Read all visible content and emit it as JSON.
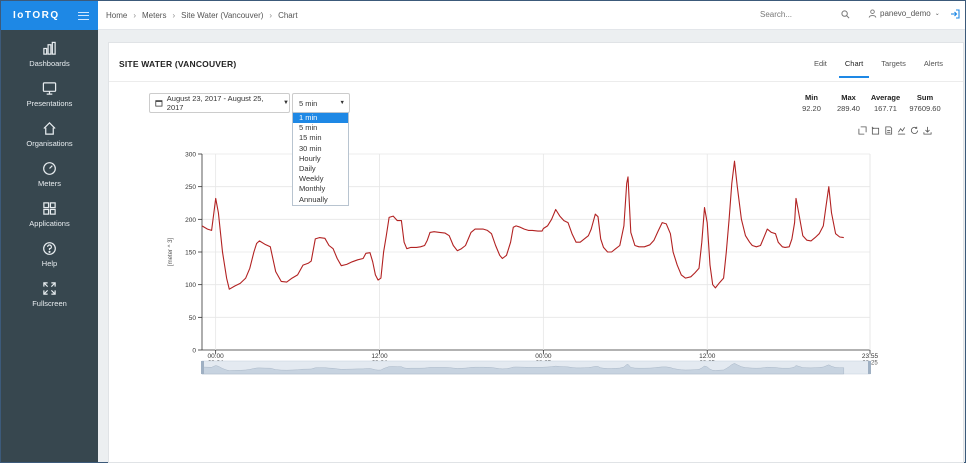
{
  "app": {
    "logo": "IoTORQ"
  },
  "sidebar": {
    "items": [
      {
        "label": "Dashboards",
        "icon": "bar-chart-icon"
      },
      {
        "label": "Presentations",
        "icon": "monitor-icon"
      },
      {
        "label": "Organisations",
        "icon": "home-icon"
      },
      {
        "label": "Meters",
        "icon": "gauge-icon"
      },
      {
        "label": "Applications",
        "icon": "grid-icon"
      },
      {
        "label": "Help",
        "icon": "help-icon"
      },
      {
        "label": "Fullscreen",
        "icon": "fullscreen-icon"
      }
    ]
  },
  "topbar": {
    "breadcrumb": [
      "Home",
      "Meters",
      "Site Water (Vancouver)",
      "Chart"
    ],
    "search_placeholder": "Search...",
    "user": "panevo_demo"
  },
  "card": {
    "title": "SITE WATER (VANCOUVER)",
    "tabs": [
      "Edit",
      "Chart",
      "Targets",
      "Alerts"
    ],
    "active_tab": "Chart"
  },
  "controls": {
    "date_range": "August 23, 2017 - August 25, 2017",
    "interval_selected": "5 min",
    "interval_options": [
      "1 min",
      "5 min",
      "15 min",
      "30 min",
      "Hourly",
      "Daily",
      "Weekly",
      "Monthly",
      "Annually"
    ],
    "highlighted_option": "1 min"
  },
  "stats": [
    {
      "label": "Min",
      "value": "92.20"
    },
    {
      "label": "Max",
      "value": "289.40"
    },
    {
      "label": "Average",
      "value": "167.71"
    },
    {
      "label": "Sum",
      "value": "97609.60"
    }
  ],
  "chart_data": {
    "type": "line",
    "ylabel": "[meter ^ 3]",
    "ylim": [
      0,
      300
    ],
    "yticks": [
      "0",
      "50",
      "100",
      "150",
      "200",
      "250",
      "300"
    ],
    "xticks": [
      {
        "time": "00:00",
        "date": "08-24"
      },
      {
        "time": "12:00",
        "date": "08-24"
      },
      {
        "time": "00:00",
        "date": "08-25"
      },
      {
        "time": "12:00",
        "date": "08-25"
      },
      {
        "time": "23:55",
        "date": "08-25"
      }
    ],
    "line_color": "#b22222",
    "x_hours_start": -1,
    "x_hours_end": 47.92,
    "series": [
      {
        "points": [
          [
            -1,
            190
          ],
          [
            -0.6,
            185
          ],
          [
            -0.3,
            183
          ],
          [
            0,
            232
          ],
          [
            0.2,
            210
          ],
          [
            0.5,
            150
          ],
          [
            0.8,
            110
          ],
          [
            1.0,
            93
          ],
          [
            1.4,
            98
          ],
          [
            1.8,
            102
          ],
          [
            2.2,
            110
          ],
          [
            2.5,
            125
          ],
          [
            2.8,
            150
          ],
          [
            3.0,
            163
          ],
          [
            3.2,
            167
          ],
          [
            3.6,
            162
          ],
          [
            4.0,
            158
          ],
          [
            4.4,
            120
          ],
          [
            4.8,
            105
          ],
          [
            5.2,
            104
          ],
          [
            5.6,
            110
          ],
          [
            6.0,
            115
          ],
          [
            6.4,
            130
          ],
          [
            6.8,
            133
          ],
          [
            7.0,
            136
          ],
          [
            7.3,
            170
          ],
          [
            7.6,
            172
          ],
          [
            8.0,
            171
          ],
          [
            8.3,
            160
          ],
          [
            8.6,
            155
          ],
          [
            8.9,
            140
          ],
          [
            9.2,
            129
          ],
          [
            9.6,
            131
          ],
          [
            10.0,
            135
          ],
          [
            10.4,
            138
          ],
          [
            10.8,
            140
          ],
          [
            11.0,
            148
          ],
          [
            11.3,
            149
          ],
          [
            11.5,
            135
          ],
          [
            11.7,
            115
          ],
          [
            11.9,
            107
          ],
          [
            12.1,
            110
          ],
          [
            12.3,
            150
          ],
          [
            12.5,
            175
          ],
          [
            12.7,
            203
          ],
          [
            13.0,
            205
          ],
          [
            13.3,
            198
          ],
          [
            13.6,
            198
          ],
          [
            13.8,
            165
          ],
          [
            14.0,
            155
          ],
          [
            14.3,
            157
          ],
          [
            14.7,
            157
          ],
          [
            15.0,
            158
          ],
          [
            15.3,
            160
          ],
          [
            15.5,
            168
          ],
          [
            15.7,
            180
          ],
          [
            16.0,
            181
          ],
          [
            16.4,
            180
          ],
          [
            16.8,
            179
          ],
          [
            17.1,
            175
          ],
          [
            17.4,
            160
          ],
          [
            17.7,
            152
          ],
          [
            18.0,
            155
          ],
          [
            18.3,
            160
          ],
          [
            18.5,
            170
          ],
          [
            18.7,
            180
          ],
          [
            19.0,
            185
          ],
          [
            19.3,
            185
          ],
          [
            19.6,
            185
          ],
          [
            19.9,
            183
          ],
          [
            20.2,
            178
          ],
          [
            20.5,
            160
          ],
          [
            20.8,
            145
          ],
          [
            21.0,
            140
          ],
          [
            21.3,
            145
          ],
          [
            21.6,
            165
          ],
          [
            21.8,
            188
          ],
          [
            22.0,
            190
          ],
          [
            22.3,
            188
          ],
          [
            22.6,
            185
          ],
          [
            22.9,
            183
          ],
          [
            23.2,
            183
          ],
          [
            23.6,
            182
          ],
          [
            23.9,
            182
          ],
          [
            24.0,
            186
          ],
          [
            24.3,
            190
          ],
          [
            24.6,
            200
          ],
          [
            24.9,
            215
          ],
          [
            25.2,
            205
          ],
          [
            25.5,
            198
          ],
          [
            25.8,
            195
          ],
          [
            26.1,
            178
          ],
          [
            26.4,
            165
          ],
          [
            26.7,
            165
          ],
          [
            27.0,
            170
          ],
          [
            27.3,
            175
          ],
          [
            27.5,
            185
          ],
          [
            27.8,
            208
          ],
          [
            28.0,
            204
          ],
          [
            28.2,
            170
          ],
          [
            28.4,
            157
          ],
          [
            28.7,
            150
          ],
          [
            29.0,
            150
          ],
          [
            29.3,
            155
          ],
          [
            29.6,
            160
          ],
          [
            29.9,
            190
          ],
          [
            30.1,
            255
          ],
          [
            30.2,
            265
          ],
          [
            30.4,
            180
          ],
          [
            30.7,
            160
          ],
          [
            31.0,
            158
          ],
          [
            31.4,
            158
          ],
          [
            31.8,
            161
          ],
          [
            32.1,
            168
          ],
          [
            32.4,
            182
          ],
          [
            32.7,
            195
          ],
          [
            33.0,
            193
          ],
          [
            33.3,
            178
          ],
          [
            33.5,
            150
          ],
          [
            33.8,
            130
          ],
          [
            34.1,
            115
          ],
          [
            34.4,
            110
          ],
          [
            34.8,
            112
          ],
          [
            35.1,
            118
          ],
          [
            35.4,
            125
          ],
          [
            35.6,
            165
          ],
          [
            35.8,
            218
          ],
          [
            36.0,
            195
          ],
          [
            36.2,
            130
          ],
          [
            36.4,
            100
          ],
          [
            36.6,
            95
          ],
          [
            36.9,
            103
          ],
          [
            37.2,
            110
          ],
          [
            37.4,
            150
          ],
          [
            37.6,
            200
          ],
          [
            37.8,
            255
          ],
          [
            38.0,
            289
          ],
          [
            38.2,
            250
          ],
          [
            38.5,
            200
          ],
          [
            38.8,
            175
          ],
          [
            39.1,
            165
          ],
          [
            39.3,
            160
          ],
          [
            39.6,
            158
          ],
          [
            39.9,
            160
          ],
          [
            40.2,
            175
          ],
          [
            40.4,
            185
          ],
          [
            40.7,
            180
          ],
          [
            41.0,
            178
          ],
          [
            41.2,
            165
          ],
          [
            41.5,
            158
          ],
          [
            41.7,
            157
          ],
          [
            42.0,
            158
          ],
          [
            42.2,
            170
          ],
          [
            42.4,
            195
          ],
          [
            42.5,
            232
          ],
          [
            42.7,
            210
          ],
          [
            43.0,
            175
          ],
          [
            43.3,
            168
          ],
          [
            43.6,
            167
          ],
          [
            43.9,
            172
          ],
          [
            44.2,
            178
          ],
          [
            44.5,
            190
          ],
          [
            44.7,
            220
          ],
          [
            44.9,
            250
          ],
          [
            45.1,
            210
          ],
          [
            45.4,
            178
          ],
          [
            45.7,
            173
          ],
          [
            46.0,
            172
          ]
        ]
      }
    ]
  }
}
